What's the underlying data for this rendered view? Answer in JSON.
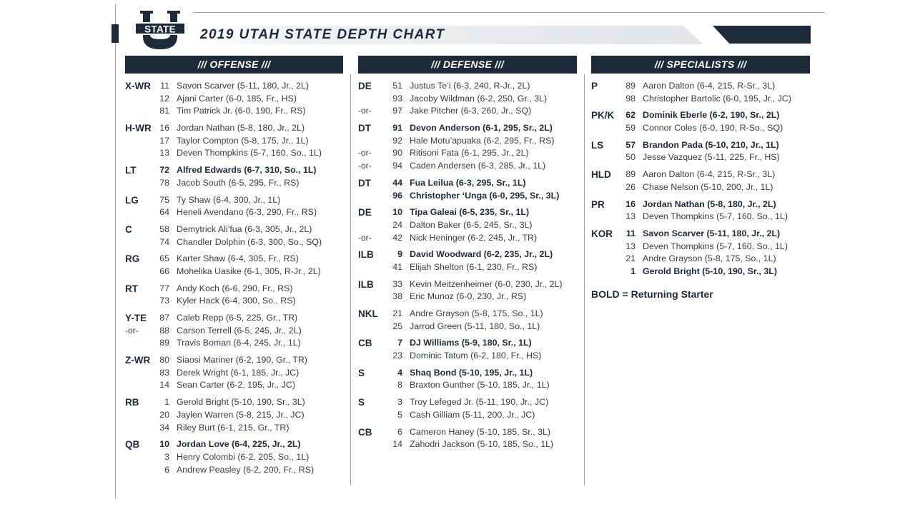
{
  "header": {
    "logo_text": "STATE",
    "title": "2019 UTAH STATE DEPTH CHART"
  },
  "colors": {
    "navy": "#1c2a3a",
    "gray_rule": "#9aa1a8"
  },
  "legend": "BOLD = Returning Starter",
  "columns": [
    {
      "header": "/// OFFENSE ///",
      "groups": [
        {
          "pos": "X-WR",
          "players": [
            {
              "or": "",
              "num": "11",
              "name": "Savon Scarver (5-11, 180, Jr., 2L)",
              "bold": false
            },
            {
              "or": "",
              "num": "12",
              "name": "Ajani Carter (6-0, 185, Fr., HS)",
              "bold": false
            },
            {
              "or": "",
              "num": "81",
              "name": "Tim Patrick Jr. (6-0, 190, Fr., RS)",
              "bold": false
            }
          ]
        },
        {
          "pos": "H-WR",
          "players": [
            {
              "or": "",
              "num": "16",
              "name": "Jordan Nathan (5-8, 180, Jr., 2L)",
              "bold": false
            },
            {
              "or": "",
              "num": "17",
              "name": "Taylor Compton (5-8, 175, Jr., 1L)",
              "bold": false
            },
            {
              "or": "",
              "num": "13",
              "name": "Deven Thompkins (5-7, 160, So., 1L)",
              "bold": false
            }
          ]
        },
        {
          "pos": "LT",
          "players": [
            {
              "or": "",
              "num": "72",
              "name": "Alfred Edwards (6-7, 310, So., 1L)",
              "bold": true
            },
            {
              "or": "",
              "num": "78",
              "name": "Jacob South (6-5, 295, Fr., RS)",
              "bold": false
            }
          ]
        },
        {
          "pos": "LG",
          "players": [
            {
              "or": "",
              "num": "75",
              "name": "Ty Shaw (6-4, 300, Jr., 1L)",
              "bold": false
            },
            {
              "or": "",
              "num": "64",
              "name": "Heneli Avendano (6-3, 290, Fr., RS)",
              "bold": false
            }
          ]
        },
        {
          "pos": "C",
          "players": [
            {
              "or": "",
              "num": "58",
              "name": "Demytrick Ali’fua (6-3, 305, Jr., 2L)",
              "bold": false
            },
            {
              "or": "",
              "num": "74",
              "name": "Chandler Dolphin (6-3, 300, So., SQ)",
              "bold": false
            }
          ]
        },
        {
          "pos": "RG",
          "players": [
            {
              "or": "",
              "num": "65",
              "name": "Karter Shaw (6-4, 305, Fr., RS)",
              "bold": false
            },
            {
              "or": "",
              "num": "66",
              "name": "Mohelika Uasike (6-1, 305, R-Jr., 2L)",
              "bold": false
            }
          ]
        },
        {
          "pos": "RT",
          "players": [
            {
              "or": "",
              "num": "77",
              "name": "Andy Koch (6-6, 290, Fr., RS)",
              "bold": false
            },
            {
              "or": "",
              "num": "73",
              "name": "Kyler Hack (6-4, 300, So., RS)",
              "bold": false
            }
          ]
        },
        {
          "pos": "Y-TE",
          "players": [
            {
              "or": "",
              "num": "87",
              "name": "Caleb Repp (6-5, 225, Gr., TR)",
              "bold": false
            },
            {
              "or": "-or-",
              "num": "88",
              "name": "Carson Terrell (6-5, 245, Jr., 2L)",
              "bold": false
            },
            {
              "or": "",
              "num": "89",
              "name": "Travis Boman (6-4, 245, Jr., 1L)",
              "bold": false
            }
          ]
        },
        {
          "pos": "Z-WR",
          "players": [
            {
              "or": "",
              "num": "80",
              "name": "Siaosi Mariner (6-2, 190, Gr., TR)",
              "bold": false
            },
            {
              "or": "",
              "num": "83",
              "name": "Derek Wright (6-1, 185, Jr., JC)",
              "bold": false
            },
            {
              "or": "",
              "num": "14",
              "name": "Sean Carter (6-2, 195, Jr., JC)",
              "bold": false
            }
          ]
        },
        {
          "pos": "RB",
          "players": [
            {
              "or": "",
              "num": "1",
              "name": "Gerold Bright (5-10, 190, Sr., 3L)",
              "bold": false
            },
            {
              "or": "",
              "num": "20",
              "name": "Jaylen Warren (5-8, 215, Jr., JC)",
              "bold": false
            },
            {
              "or": "",
              "num": "34",
              "name": "Riley Burt (6-1, 215, Gr., TR)",
              "bold": false
            }
          ]
        },
        {
          "pos": "QB",
          "players": [
            {
              "or": "",
              "num": "10",
              "name": "Jordan Love (6-4, 225, Jr., 2L)",
              "bold": true
            },
            {
              "or": "",
              "num": "3",
              "name": "Henry Colombi (6-2, 205, So., 1L)",
              "bold": false
            },
            {
              "or": "",
              "num": "6",
              "name": "Andrew Peasley (6-2, 200, Fr., RS)",
              "bold": false
            }
          ]
        }
      ]
    },
    {
      "header": "/// DEFENSE ///",
      "groups": [
        {
          "pos": "DE",
          "players": [
            {
              "or": "",
              "num": "51",
              "name": "Justus Te’i (6-3, 240, R-Jr., 2L)",
              "bold": false
            },
            {
              "or": "",
              "num": "93",
              "name": "Jacoby Wildman (6-2, 250, Gr., 3L)",
              "bold": false
            },
            {
              "or": "-or-",
              "num": "97",
              "name": "Jake Pitcher (6-3, 260, Jr., SQ)",
              "bold": false
            }
          ]
        },
        {
          "pos": "DT",
          "players": [
            {
              "or": "",
              "num": "91",
              "name": "Devon Anderson (6-1, 295, Sr., 2L)",
              "bold": true
            },
            {
              "or": "",
              "num": "92",
              "name": "Hale Motu’apuaka (6-2, 295, Fr., RS)",
              "bold": false
            },
            {
              "or": "-or-",
              "num": "90",
              "name": "Ritisoni Fata (6-1, 295, Jr., 2L)",
              "bold": false
            },
            {
              "or": "-or-",
              "num": "94",
              "name": "Caden Andersen (6-3, 285, Jr., 1L)",
              "bold": false
            }
          ]
        },
        {
          "pos": "DT",
          "players": [
            {
              "or": "",
              "num": "44",
              "name": "Fua Leilua (6-3, 295, Sr., 1L)",
              "bold": true
            },
            {
              "or": "",
              "num": "96",
              "name": "Christopher ‘Unga (6-0, 295, Sr., 3L)",
              "bold": true
            }
          ]
        },
        {
          "pos": "DE",
          "players": [
            {
              "or": "",
              "num": "10",
              "name": "Tipa Galeai (6-5, 235, Sr., 1L)",
              "bold": true
            },
            {
              "or": "",
              "num": "24",
              "name": "Dalton Baker (6-5, 245, Sr., 3L)",
              "bold": false
            },
            {
              "or": "-or-",
              "num": "42",
              "name": "Nick Heninger (6-2, 245, Jr., TR)",
              "bold": false
            }
          ]
        },
        {
          "pos": "ILB",
          "players": [
            {
              "or": "",
              "num": "9",
              "name": "David Woodward (6-2, 235, Jr., 2L)",
              "bold": true
            },
            {
              "or": "",
              "num": "41",
              "name": "Elijah Shelton (6-1, 230, Fr., RS)",
              "bold": false
            }
          ]
        },
        {
          "pos": "ILB",
          "players": [
            {
              "or": "",
              "num": "33",
              "name": "Kevin Meitzenheimer (6-0, 230, Jr., 2L)",
              "bold": false
            },
            {
              "or": "",
              "num": "38",
              "name": "Eric Munoz (6-0, 230, Jr., RS)",
              "bold": false
            }
          ]
        },
        {
          "pos": "NKL",
          "players": [
            {
              "or": "",
              "num": "21",
              "name": "Andre Grayson (5-8, 175, So., 1L)",
              "bold": false
            },
            {
              "or": "",
              "num": "25",
              "name": "Jarrod Green (5-11, 180, So., 1L)",
              "bold": false
            }
          ]
        },
        {
          "pos": "CB",
          "players": [
            {
              "or": "",
              "num": "7",
              "name": "DJ Williams (5-9, 180, Sr., 1L)",
              "bold": true
            },
            {
              "or": "",
              "num": "23",
              "name": "Dominic Tatum (6-2, 180, Fr., HS)",
              "bold": false
            }
          ]
        },
        {
          "pos": "S",
          "players": [
            {
              "or": "",
              "num": "4",
              "name": "Shaq Bond (5-10, 195, Jr., 1L)",
              "bold": true
            },
            {
              "or": "",
              "num": "8",
              "name": "Braxton Gunther (5-10, 185, Jr., 1L)",
              "bold": false
            }
          ]
        },
        {
          "pos": "S",
          "players": [
            {
              "or": "",
              "num": "3",
              "name": "Troy Lefeged Jr. (5-11, 190, Jr., JC)",
              "bold": false
            },
            {
              "or": "",
              "num": "5",
              "name": "Cash Gilliam (5-11, 200, Jr., JC)",
              "bold": false
            }
          ]
        },
        {
          "pos": "CB",
          "players": [
            {
              "or": "",
              "num": "6",
              "name": "Cameron Haney (5-10, 185, Sr., 3L)",
              "bold": false
            },
            {
              "or": "",
              "num": "14",
              "name": "Zahodri Jackson (5-10, 185, So., 1L)",
              "bold": false
            }
          ]
        }
      ]
    },
    {
      "header": "/// SPECIALISTS ///",
      "groups": [
        {
          "pos": "P",
          "players": [
            {
              "or": "",
              "num": "89",
              "name": "Aaron Dalton (6-4, 215, R-Sr., 3L)",
              "bold": false
            },
            {
              "or": "",
              "num": "98",
              "name": "Christopher Bartolic (6-0, 195, Jr., JC)",
              "bold": false
            }
          ]
        },
        {
          "pos": "PK/K",
          "players": [
            {
              "or": "",
              "num": "62",
              "name": "Dominik Eberle (6-2, 190, Sr., 2L)",
              "bold": true
            },
            {
              "or": "",
              "num": "59",
              "name": "Connor Coles (6-0, 190, R-So., SQ)",
              "bold": false
            }
          ]
        },
        {
          "pos": "LS",
          "players": [
            {
              "or": "",
              "num": "57",
              "name": "Brandon Pada (5-10, 210, Jr., 1L)",
              "bold": true
            },
            {
              "or": "",
              "num": "50",
              "name": "Jesse Vazquez (5-11, 225, Fr., HS)",
              "bold": false
            }
          ]
        },
        {
          "pos": "HLD",
          "players": [
            {
              "or": "",
              "num": "89",
              "name": "Aaron Dalton (6-4, 215, R-Sr., 3L)",
              "bold": false
            },
            {
              "or": "",
              "num": "26",
              "name": "Chase Nelson (5-10, 200, Jr., 1L)",
              "bold": false
            }
          ]
        },
        {
          "pos": "PR",
          "players": [
            {
              "or": "",
              "num": "16",
              "name": "Jordan Nathan (5-8, 180, Jr., 2L)",
              "bold": true
            },
            {
              "or": "",
              "num": "13",
              "name": "Deven Thompkins (5-7, 160, So., 1L)",
              "bold": false
            }
          ]
        },
        {
          "pos": "KOR",
          "players": [
            {
              "or": "",
              "num": "11",
              "name": "Savon Scarver (5-11, 180, Jr., 2L)",
              "bold": true
            },
            {
              "or": "",
              "num": "13",
              "name": "Deven Thompkins (5-7, 160, So., 1L)",
              "bold": false
            },
            {
              "or": "",
              "num": "21",
              "name": "Andre Grayson (5-8, 175, So., 1L)",
              "bold": false
            },
            {
              "or": "",
              "num": "1",
              "name": "Gerold Bright (5-10, 190, Sr., 3L)",
              "bold": true
            }
          ]
        }
      ]
    }
  ]
}
